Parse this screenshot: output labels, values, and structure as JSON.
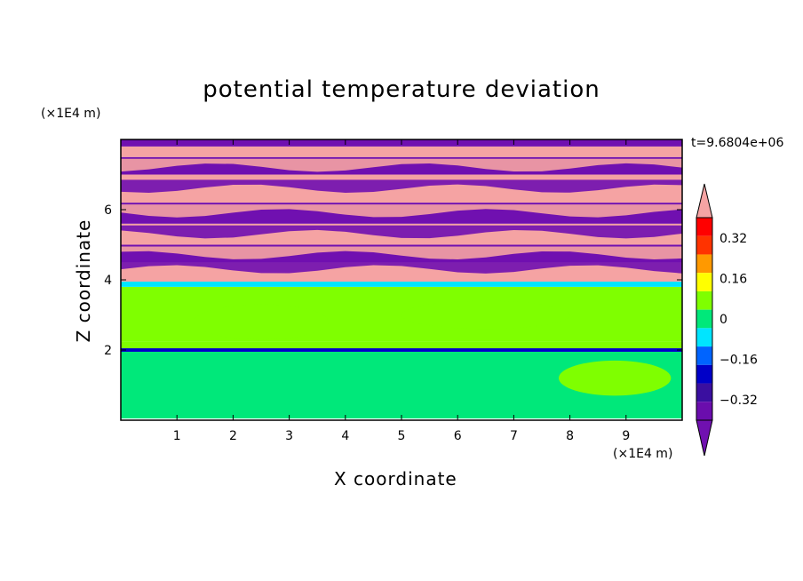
{
  "chart_data": {
    "type": "heatmap",
    "title": "potential temperature deviation",
    "xlabel": "X coordinate",
    "ylabel": "Z coordinate",
    "x_unit": "(×1E4 m)",
    "z_unit": "(×1E4 m)",
    "time_label": "t=9.6804e+06",
    "xlim": [
      0,
      10
    ],
    "ylim": [
      0,
      8
    ],
    "x_ticks": [
      "1",
      "2",
      "3",
      "4",
      "5",
      "6",
      "7",
      "8",
      "9"
    ],
    "z_ticks": [
      "2",
      "4",
      "6"
    ],
    "colorbar": {
      "levels": [
        -0.4,
        -0.32,
        -0.24,
        -0.16,
        -0.08,
        0,
        0.08,
        0.16,
        0.24,
        0.32,
        0.4
      ],
      "labels": [
        "0.32",
        "0.16",
        "0",
        "−0.16",
        "−0.32"
      ],
      "label_values": [
        0.32,
        0.16,
        0,
        -0.16,
        -0.32
      ],
      "colors": [
        "#6a0dad",
        "#3a0fa0",
        "#0000c8",
        "#0064ff",
        "#00e5ff",
        "#00e87a",
        "#7fff00",
        "#ffff00",
        "#ff9900",
        "#ff3300",
        "#ff0000"
      ],
      "over_color": "#f5a3a3",
      "under_color": "#7010b0"
    },
    "bands": [
      {
        "z": [
          0.05,
          1.95
        ],
        "color": "#00e87a"
      },
      {
        "z": [
          1.95,
          2.05
        ],
        "color": "#0000c8"
      },
      {
        "z": [
          2.05,
          2.25
        ],
        "color": "#7fff00"
      },
      {
        "z": [
          2.25,
          3.8
        ],
        "color": "#7fff00"
      },
      {
        "z": [
          3.8,
          3.95
        ],
        "color": "#00e5ff"
      },
      {
        "z": [
          3.95,
          4.5
        ],
        "color": "#f5a3a3"
      },
      {
        "z": [
          4.5,
          5.0
        ],
        "color": "#7010b0"
      },
      {
        "z": [
          5.0,
          5.6
        ],
        "color": "#f5a3a3"
      },
      {
        "z": [
          5.6,
          6.2
        ],
        "color": "#7010b0"
      },
      {
        "z": [
          6.2,
          7.0
        ],
        "color": "#f5a3a3"
      },
      {
        "z": [
          7.0,
          7.5
        ],
        "color": "#7010b0"
      },
      {
        "z": [
          7.5,
          7.8
        ],
        "color": "#f5a3a3"
      },
      {
        "z": [
          7.8,
          8.0
        ],
        "color": "#7010b0"
      }
    ]
  }
}
